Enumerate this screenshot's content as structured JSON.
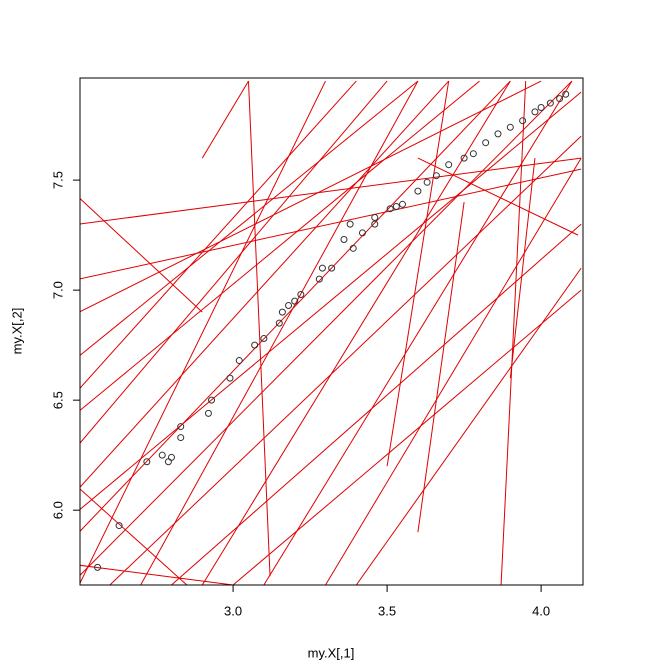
{
  "chart_data": {
    "type": "scatter",
    "x_label": "my.X[,1]",
    "y_label": "my.X[,2]",
    "xlim": [
      2.503,
      4.136
    ],
    "ylim": [
      5.66,
      7.964
    ],
    "xticks": [
      {
        "value": 3.0,
        "label": "3.0"
      },
      3.5,
      {
        "value": 4.0,
        "label": "4.0"
      }
    ],
    "yticks": [
      {
        "value": 6.0,
        "label": "6.0"
      },
      6.5,
      {
        "value": 7.0,
        "label": "7.0"
      },
      7.5
    ],
    "point_color": "#333333",
    "line_color": "#e00000",
    "x": [
      2.56,
      2.63,
      2.72,
      2.77,
      2.79,
      2.8,
      2.83,
      2.83,
      2.92,
      2.93,
      2.99,
      3.02,
      3.07,
      3.1,
      3.15,
      3.16,
      3.18,
      3.2,
      3.22,
      3.28,
      3.29,
      3.32,
      3.36,
      3.38,
      3.39,
      3.42,
      3.46,
      3.46,
      3.51,
      3.53,
      3.55,
      3.6,
      3.63,
      3.66,
      3.7,
      3.75,
      3.78,
      3.82,
      3.86,
      3.9,
      3.94,
      3.98,
      4.0,
      4.03,
      4.06,
      4.08
    ],
    "y": [
      5.74,
      5.93,
      6.22,
      6.25,
      6.22,
      6.24,
      6.33,
      6.38,
      6.44,
      6.5,
      6.6,
      6.68,
      6.75,
      6.78,
      6.85,
      6.9,
      6.93,
      6.95,
      6.98,
      7.05,
      7.1,
      7.1,
      7.23,
      7.3,
      7.19,
      7.26,
      7.3,
      7.33,
      7.37,
      7.38,
      7.39,
      7.45,
      7.49,
      7.52,
      7.57,
      7.6,
      7.62,
      7.67,
      7.71,
      7.74,
      7.77,
      7.81,
      7.83,
      7.85,
      7.87,
      7.89
    ],
    "lines": [
      {
        "x": [
          2.5,
          4.1
        ],
        "y": [
          5.7,
          7.95
        ]
      },
      {
        "x": [
          2.5,
          3.9
        ],
        "y": [
          5.9,
          7.95
        ]
      },
      {
        "x": [
          2.5,
          3.7
        ],
        "y": [
          6.1,
          7.95
        ]
      },
      {
        "x": [
          2.5,
          3.5
        ],
        "y": [
          6.3,
          7.95
        ]
      },
      {
        "x": [
          2.6,
          4.13
        ],
        "y": [
          5.66,
          7.7
        ]
      },
      {
        "x": [
          2.8,
          4.13
        ],
        "y": [
          5.66,
          7.3
        ]
      },
      {
        "x": [
          3.0,
          4.13
        ],
        "y": [
          5.66,
          7.0
        ]
      },
      {
        "x": [
          2.5,
          4.13
        ],
        "y": [
          7.3,
          7.6
        ]
      },
      {
        "x": [
          2.5,
          4.13
        ],
        "y": [
          7.05,
          7.55
        ]
      },
      {
        "x": [
          2.5,
          4.0
        ],
        "y": [
          6.9,
          7.95
        ]
      },
      {
        "x": [
          2.5,
          3.4
        ],
        "y": [
          6.55,
          7.95
        ]
      },
      {
        "x": [
          2.5,
          2.9
        ],
        "y": [
          7.42,
          6.9
        ]
      },
      {
        "x": [
          3.05,
          3.12
        ],
        "y": [
          7.95,
          5.7
        ]
      },
      {
        "x": [
          3.87,
          3.95
        ],
        "y": [
          5.66,
          7.95
        ]
      },
      {
        "x": [
          3.9,
          3.98
        ],
        "y": [
          6.6,
          7.6
        ]
      },
      {
        "x": [
          2.9,
          3.05
        ],
        "y": [
          7.6,
          7.95
        ]
      },
      {
        "x": [
          3.6,
          4.12
        ],
        "y": [
          7.6,
          7.25
        ]
      },
      {
        "x": [
          3.3,
          4.13
        ],
        "y": [
          5.66,
          7.6
        ]
      },
      {
        "x": [
          2.5,
          3.3
        ],
        "y": [
          5.66,
          7.95
        ]
      },
      {
        "x": [
          2.7,
          3.6
        ],
        "y": [
          5.66,
          7.95
        ]
      },
      {
        "x": [
          2.9,
          3.9
        ],
        "y": [
          5.66,
          7.95
        ]
      },
      {
        "x": [
          3.1,
          4.1
        ],
        "y": [
          5.66,
          7.95
        ]
      },
      {
        "x": [
          3.5,
          3.7
        ],
        "y": [
          6.2,
          7.95
        ]
      },
      {
        "x": [
          2.5,
          4.13
        ],
        "y": [
          6.0,
          7.9
        ]
      },
      {
        "x": [
          2.5,
          3.6
        ],
        "y": [
          6.7,
          7.95
        ]
      },
      {
        "x": [
          3.6,
          3.75
        ],
        "y": [
          5.9,
          7.4
        ]
      },
      {
        "x": [
          2.5,
          3.0
        ],
        "y": [
          5.75,
          5.66
        ]
      },
      {
        "x": [
          2.85,
          2.5
        ],
        "y": [
          5.66,
          6.1
        ]
      },
      {
        "x": [
          2.5,
          3.8
        ],
        "y": [
          6.45,
          7.95
        ]
      },
      {
        "x": [
          3.4,
          4.13
        ],
        "y": [
          5.66,
          7.1
        ]
      }
    ]
  }
}
